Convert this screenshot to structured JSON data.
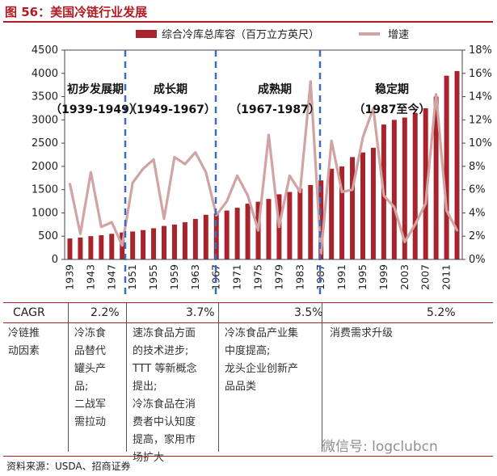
{
  "title": "图 56：美国冷链行业发展",
  "chart_data": {
    "type": "bar+line",
    "categories": [
      "1939",
      "1941",
      "1943",
      "1945",
      "1947",
      "1949",
      "1951",
      "1953",
      "1955",
      "1957",
      "1959",
      "1961",
      "1963",
      "1965",
      "1967",
      "1969",
      "1971",
      "1973",
      "1975",
      "1977",
      "1979",
      "1981",
      "1983",
      "1985",
      "1987",
      "1989",
      "1991",
      "1993",
      "1995",
      "1997",
      "1999",
      "2001",
      "2003",
      "2005",
      "2007",
      "2009",
      "2011",
      "2013"
    ],
    "x_tick_labels": [
      "1939",
      "1943",
      "1947",
      "1951",
      "1955",
      "1959",
      "1963",
      "1967",
      "1971",
      "1975",
      "1979",
      "1983",
      "1987",
      "1991",
      "1995",
      "1999",
      "2003",
      "2007",
      "2011"
    ],
    "series": [
      {
        "name": "综合冷库总库容（百万立方英尺）",
        "type": "bar",
        "axis": "left",
        "color": "#a8242c",
        "values": [
          450,
          470,
          500,
          520,
          550,
          580,
          600,
          630,
          670,
          720,
          750,
          800,
          870,
          960,
          990,
          1050,
          1110,
          1200,
          1240,
          1300,
          1400,
          1450,
          1520,
          1600,
          1700,
          1950,
          2000,
          2200,
          2300,
          2400,
          2900,
          3000,
          3050,
          3150,
          3250,
          3500,
          3950,
          4050
        ]
      },
      {
        "name": "增速",
        "type": "line",
        "axis": "right",
        "color": "#d2a3a3",
        "values": [
          6.5,
          2.2,
          7.5,
          2.8,
          3.2,
          1.2,
          6.6,
          7.8,
          8.6,
          3.5,
          8.8,
          8.2,
          9.2,
          7.5,
          3.8,
          5.0,
          7.2,
          5.5,
          2.5,
          10.7,
          2.8,
          7.2,
          5.8,
          15.3,
          0.5,
          10.2,
          5.8,
          6.0,
          10.5,
          13.0,
          5.5,
          4.5,
          1.5,
          3.0,
          4.8,
          14.2,
          4.2,
          2.5
        ]
      }
    ],
    "ylim_left": [
      0,
      4500
    ],
    "left_ticks": [
      "0",
      "500",
      "1000",
      "1500",
      "2000",
      "2500",
      "3000",
      "3500",
      "4000",
      "4500"
    ],
    "ylim_right": [
      0,
      18
    ],
    "right_ticks": [
      "0%",
      "2%",
      "4%",
      "6%",
      "8%",
      "10%",
      "12%",
      "14%",
      "16%",
      "18%"
    ],
    "legend": [
      "综合冷库总库容（百万立方英尺）",
      "增速"
    ],
    "legend_position": "top",
    "period_dividers_at": [
      "1950",
      "1967",
      "1987"
    ],
    "periods": [
      {
        "name": "初步发展期",
        "range": "（1939-1949）"
      },
      {
        "name": "成长期",
        "range": "（1949-1967）"
      },
      {
        "name": "成熟期",
        "range": "（1967-1987）"
      },
      {
        "name": "稳定期",
        "range": "（1987至今）"
      }
    ]
  },
  "cagr": {
    "label": "CAGR",
    "values": [
      "2.2%",
      "3.7%",
      "3.5%",
      "5.2%"
    ]
  },
  "drivers": {
    "label": [
      "冷链推",
      "动因素"
    ],
    "columns": [
      [
        "冷冻食",
        "品替代",
        "罐头产",
        "品;",
        "二战军",
        "需拉动"
      ],
      [
        "速冻食品方面",
        "的技术进步;",
        "TTT 等新概念",
        "提出;",
        "冷冻食品在消",
        "费者中认知度",
        "提高，家用市",
        "场扩大"
      ],
      [
        "冷冻食品产业集",
        "中度提高;",
        "龙头企业创新产",
        "品品类"
      ],
      [
        "消费需求升级"
      ]
    ]
  },
  "source": "资料来源：USDA、招商证券",
  "watermark": "微信号: logclubcn"
}
